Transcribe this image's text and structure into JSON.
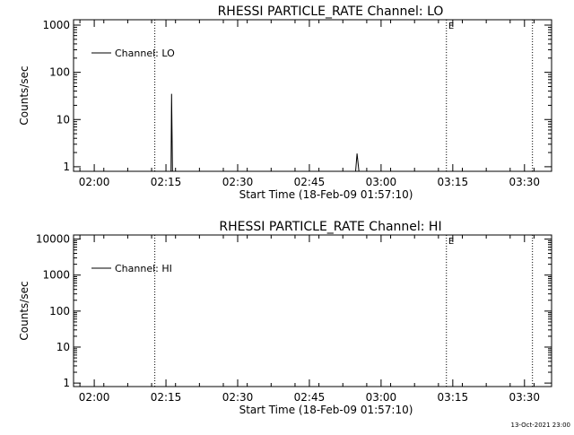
{
  "footer_timestamp": "13-Oct-2021 23:00",
  "chart_data": [
    {
      "type": "line",
      "title": "RHESSI PARTICLE_RATE Channel: LO",
      "xlabel": "Start Time (18-Feb-09 01:57:10)",
      "ylabel": "Counts/sec",
      "x_tick_labels": [
        "02:00",
        "02:15",
        "02:30",
        "02:45",
        "03:00",
        "03:15",
        "03:30"
      ],
      "x_tick_minutes": [
        2.8333,
        17.8333,
        32.8333,
        47.8333,
        62.8333,
        77.8333,
        92.8333
      ],
      "xlim_minutes": [
        -1.5,
        98.5
      ],
      "ylog": true,
      "ylim": [
        0.8,
        1300
      ],
      "y_tick_labels": [
        "1",
        "10",
        "100",
        "1000"
      ],
      "y_tick_values": [
        1,
        10,
        100,
        1000
      ],
      "legend": {
        "label": "Channel: LO",
        "placement": "top-left"
      },
      "vertical_markers_minutes": [
        15.5,
        76.5,
        94.5
      ],
      "marker_labels": [
        {
          "text": "E",
          "minute": 77.5
        }
      ],
      "series": [
        {
          "name": "Channel: LO",
          "points": [
            [
              18.9,
              0.8
            ],
            [
              19.0,
              35
            ],
            [
              19.1,
              5.5
            ],
            [
              19.2,
              0.8
            ],
            [
              57.5,
              0.8
            ],
            [
              57.8,
              1.9
            ],
            [
              58.2,
              0.8
            ]
          ]
        }
      ]
    },
    {
      "type": "line",
      "title": "RHESSI PARTICLE_RATE Channel: HI",
      "xlabel": "Start Time (18-Feb-09 01:57:10)",
      "ylabel": "Counts/sec",
      "x_tick_labels": [
        "02:00",
        "02:15",
        "02:30",
        "02:45",
        "03:00",
        "03:15",
        "03:30"
      ],
      "x_tick_minutes": [
        2.8333,
        17.8333,
        32.8333,
        47.8333,
        62.8333,
        77.8333,
        92.8333
      ],
      "xlim_minutes": [
        -1.5,
        98.5
      ],
      "ylog": true,
      "ylim": [
        0.8,
        13000
      ],
      "y_tick_labels": [
        "1",
        "10",
        "100",
        "1000",
        "10000"
      ],
      "y_tick_values": [
        1,
        10,
        100,
        1000,
        10000
      ],
      "legend": {
        "label": "Channel: HI",
        "placement": "top-left"
      },
      "vertical_markers_minutes": [
        15.5,
        76.5,
        94.5
      ],
      "marker_labels": [
        {
          "text": "E",
          "minute": 77.5
        }
      ],
      "series": [
        {
          "name": "Channel: HI",
          "points": []
        }
      ]
    }
  ]
}
